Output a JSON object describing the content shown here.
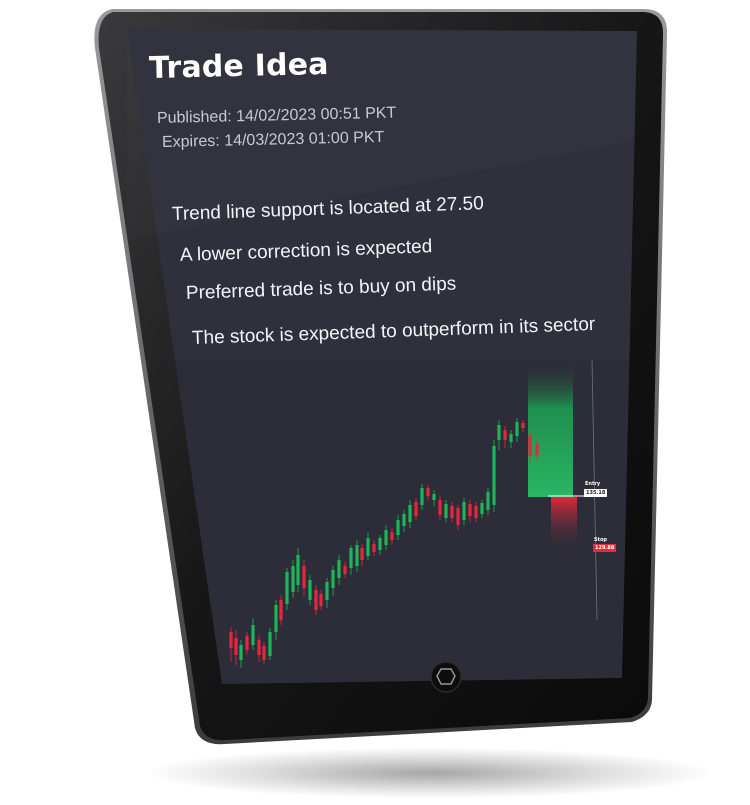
{
  "trade_idea": {
    "title": "Trade Idea",
    "published": "Published: 14/02/2023 00:51 PKT",
    "expires": "Expires: 14/03/2023 01:00 PKT",
    "points": [
      "Trend line support is located at 27.50",
      "A lower correction is expected",
      "Preferred trade is to buy on dips",
      "The stock is expected to outperform in its sector"
    ]
  },
  "chart": {
    "entry_label": "Entry",
    "entry_value": "135.18",
    "stop_label": "Stop",
    "stop_value": "129.88",
    "up_color": "#1fb35a",
    "down_color": "#e5273d",
    "profit_zone_color": "#27a35a",
    "loss_zone_color": "#d8273b"
  },
  "device": {
    "home_button": "home-button-icon"
  }
}
